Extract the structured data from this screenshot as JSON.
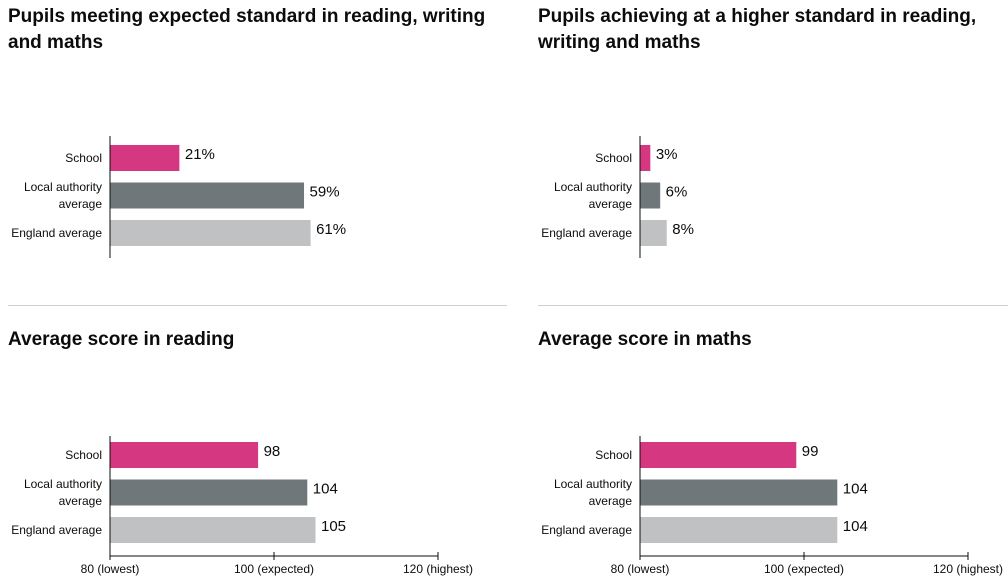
{
  "colors": {
    "school": "#d53880",
    "local": "#6f777b",
    "england": "#bfc1c3",
    "axis": "#0b0c0c",
    "divider": "#cfcfcf"
  },
  "chart_data": [
    {
      "type": "bar",
      "title": "Pupils meeting expected standard in reading, writing and maths",
      "categories": [
        "School",
        "Local authority average",
        "England average"
      ],
      "category_lines": [
        [
          "School"
        ],
        [
          "Local authority",
          "average"
        ],
        [
          "England average"
        ]
      ],
      "values": [
        21,
        59,
        61
      ],
      "value_labels": [
        "21%",
        "59%",
        "61%"
      ],
      "xlim": [
        0,
        100
      ],
      "xticks": []
    },
    {
      "type": "bar",
      "title": "Pupils achieving at a higher standard in reading, writing and maths",
      "categories": [
        "School",
        "Local authority average",
        "England average"
      ],
      "category_lines": [
        [
          "School"
        ],
        [
          "Local authority",
          "average"
        ],
        [
          "England average"
        ]
      ],
      "values": [
        3,
        6,
        8
      ],
      "value_labels": [
        "3%",
        "6%",
        "8%"
      ],
      "xlim": [
        0,
        100
      ],
      "xticks": []
    },
    {
      "type": "bar",
      "title": "Average score in reading",
      "categories": [
        "School",
        "Local authority average",
        "England average"
      ],
      "category_lines": [
        [
          "School"
        ],
        [
          "Local authority",
          "average"
        ],
        [
          "England average"
        ]
      ],
      "values": [
        98,
        104,
        105
      ],
      "value_labels": [
        "98",
        "104",
        "105"
      ],
      "xlim": [
        80,
        120
      ],
      "xticks": [
        {
          "value": 80,
          "label": "80 (lowest)"
        },
        {
          "value": 100,
          "label": "100 (expected)"
        },
        {
          "value": 120,
          "label": "120 (highest)"
        }
      ]
    },
    {
      "type": "bar",
      "title": "Average score in maths",
      "categories": [
        "School",
        "Local authority average",
        "England average"
      ],
      "category_lines": [
        [
          "School"
        ],
        [
          "Local authority",
          "average"
        ],
        [
          "England average"
        ]
      ],
      "values": [
        99,
        104,
        104
      ],
      "value_labels": [
        "99",
        "104",
        "104"
      ],
      "xlim": [
        80,
        120
      ],
      "xticks": [
        {
          "value": 80,
          "label": "80 (lowest)"
        },
        {
          "value": 100,
          "label": "100 (expected)"
        },
        {
          "value": 120,
          "label": "120 (highest)"
        }
      ]
    }
  ]
}
